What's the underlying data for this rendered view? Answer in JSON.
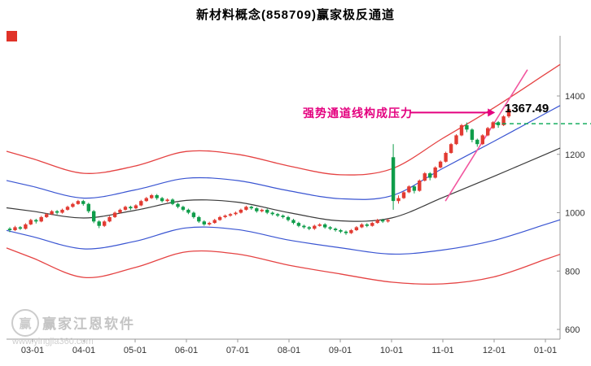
{
  "title": "新材料概念(858709)赢家极反通道",
  "annotation": {
    "text": "强势通道线构成压力",
    "price_label": "1367.49",
    "color": "#e4007f"
  },
  "watermark": {
    "logo_text": "赢",
    "name": "赢家江恩软件",
    "url": "www.yingjia360.com"
  },
  "colors": {
    "up": "#e23b32",
    "down": "#0f9d4a",
    "channel_red": "#e54343",
    "channel_blue": "#3a55d2",
    "channel_black": "#3a3a3a",
    "trend_pink": "#f2569f",
    "dashed_green": "#00a650",
    "axis": "#999999",
    "tick_label": "#333333"
  },
  "chart_data": {
    "type": "candlestick",
    "title": "新材料概念(858709)赢家极反通道",
    "x_ticks": [
      "03-01",
      "04-01",
      "05-01",
      "06-01",
      "07-01",
      "08-01",
      "09-01",
      "10-01",
      "11-01",
      "12-01",
      "01-01"
    ],
    "y_ticks": [
      600,
      800,
      1000,
      1200,
      1400
    ],
    "ylim": [
      560,
      1520
    ],
    "grid": false,
    "legend": "none",
    "candles": [
      [
        945,
        950,
        933,
        940
      ],
      [
        940,
        955,
        937,
        950
      ],
      [
        950,
        954,
        941,
        945
      ],
      [
        945,
        964,
        942,
        960
      ],
      [
        960,
        979,
        957,
        975
      ],
      [
        975,
        979,
        963,
        970
      ],
      [
        970,
        989,
        967,
        985
      ],
      [
        985,
        999,
        982,
        995
      ],
      [
        995,
        1009,
        992,
        1005
      ],
      [
        1005,
        1009,
        994,
        1000
      ],
      [
        1000,
        1014,
        997,
        1010
      ],
      [
        1010,
        1024,
        1007,
        1020
      ],
      [
        1020,
        1034,
        1017,
        1030
      ],
      [
        1030,
        1044,
        1027,
        1040
      ],
      [
        1040,
        1044,
        1024,
        1030
      ],
      [
        1030,
        1034,
        999,
        1005
      ],
      [
        1005,
        1009,
        964,
        970
      ],
      [
        970,
        974,
        947,
        955
      ],
      [
        955,
        974,
        951,
        970
      ],
      [
        970,
        989,
        967,
        985
      ],
      [
        985,
        1004,
        982,
        1000
      ],
      [
        1000,
        1014,
        997,
        1010
      ],
      [
        1010,
        1024,
        1007,
        1020
      ],
      [
        1020,
        1024,
        1009,
        1015
      ],
      [
        1015,
        1029,
        1012,
        1025
      ],
      [
        1025,
        1044,
        1022,
        1040
      ],
      [
        1040,
        1054,
        1037,
        1050
      ],
      [
        1050,
        1064,
        1047,
        1060
      ],
      [
        1060,
        1064,
        1044,
        1050
      ],
      [
        1050,
        1054,
        1035,
        1040
      ],
      [
        1040,
        1049,
        1036,
        1045
      ],
      [
        1045,
        1049,
        1026,
        1030
      ],
      [
        1030,
        1034,
        1015,
        1020
      ],
      [
        1020,
        1024,
        1005,
        1010
      ],
      [
        1010,
        1014,
        995,
        1000
      ],
      [
        1000,
        1004,
        980,
        985
      ],
      [
        985,
        989,
        965,
        970
      ],
      [
        970,
        974,
        955,
        960
      ],
      [
        960,
        969,
        956,
        965
      ],
      [
        965,
        979,
        962,
        975
      ],
      [
        975,
        989,
        972,
        985
      ],
      [
        985,
        994,
        981,
        990
      ],
      [
        990,
        999,
        986,
        995
      ],
      [
        995,
        1004,
        991,
        1000
      ],
      [
        1000,
        1014,
        997,
        1010
      ],
      [
        1010,
        1024,
        1007,
        1020
      ],
      [
        1020,
        1024,
        1010,
        1015
      ],
      [
        1015,
        1019,
        1000,
        1005
      ],
      [
        1005,
        1014,
        1001,
        1010
      ],
      [
        1010,
        1014,
        995,
        1000
      ],
      [
        1000,
        1004,
        990,
        995
      ],
      [
        995,
        999,
        985,
        990
      ],
      [
        990,
        994,
        980,
        985
      ],
      [
        985,
        989,
        970,
        975
      ],
      [
        975,
        979,
        960,
        965
      ],
      [
        965,
        969,
        950,
        955
      ],
      [
        955,
        959,
        945,
        950
      ],
      [
        950,
        954,
        940,
        945
      ],
      [
        945,
        959,
        941,
        955
      ],
      [
        955,
        964,
        952,
        960
      ],
      [
        960,
        964,
        945,
        950
      ],
      [
        950,
        954,
        940,
        945
      ],
      [
        945,
        949,
        935,
        940
      ],
      [
        940,
        944,
        930,
        935
      ],
      [
        935,
        939,
        924,
        930
      ],
      [
        930,
        944,
        927,
        940
      ],
      [
        940,
        954,
        937,
        950
      ],
      [
        950,
        964,
        947,
        960
      ],
      [
        960,
        964,
        950,
        955
      ],
      [
        955,
        969,
        952,
        965
      ],
      [
        965,
        979,
        962,
        975
      ],
      [
        975,
        979,
        965,
        970
      ],
      [
        970,
        979,
        966,
        975
      ],
      [
        1190,
        1235,
        1010,
        1040
      ],
      [
        1040,
        1059,
        1031,
        1050
      ],
      [
        1050,
        1074,
        1047,
        1070
      ],
      [
        1070,
        1094,
        1067,
        1090
      ],
      [
        1090,
        1094,
        1066,
        1075
      ],
      [
        1075,
        1114,
        1072,
        1110
      ],
      [
        1110,
        1139,
        1107,
        1135
      ],
      [
        1135,
        1139,
        1111,
        1120
      ],
      [
        1120,
        1159,
        1117,
        1155
      ],
      [
        1155,
        1179,
        1152,
        1175
      ],
      [
        1175,
        1209,
        1172,
        1205
      ],
      [
        1205,
        1239,
        1202,
        1235
      ],
      [
        1235,
        1269,
        1232,
        1265
      ],
      [
        1265,
        1304,
        1262,
        1300
      ],
      [
        1300,
        1309,
        1276,
        1285
      ],
      [
        1285,
        1289,
        1241,
        1250
      ],
      [
        1250,
        1254,
        1226,
        1235
      ],
      [
        1235,
        1269,
        1232,
        1265
      ],
      [
        1265,
        1294,
        1262,
        1290
      ],
      [
        1290,
        1314,
        1287,
        1310
      ],
      [
        1310,
        1314,
        1291,
        1300
      ],
      [
        1300,
        1334,
        1297,
        1330
      ],
      [
        1330,
        1367,
        1325,
        1355
      ]
    ],
    "channel_lines": [
      {
        "name": "upper-red-channel-line",
        "color": "#e54343",
        "width": 1.3,
        "values": [
          1185,
          1135,
          1160,
          1210,
          1200,
          1160,
          1130,
          1150,
          1255,
          1360,
          1475
        ]
      },
      {
        "name": "upper-blue-channel-line",
        "color": "#3a55d2",
        "width": 1.2,
        "values": [
          1090,
          1050,
          1078,
          1118,
          1110,
          1075,
          1048,
          1058,
          1152,
          1245,
          1340
        ]
      },
      {
        "name": "middle-black-channel-line",
        "color": "#3a3a3a",
        "width": 1.2,
        "values": [
          1005,
          982,
          1008,
          1042,
          1036,
          1000,
          972,
          982,
          1052,
          1125,
          1200
        ]
      },
      {
        "name": "lower-blue-channel-line",
        "color": "#3a55d2",
        "width": 1.2,
        "values": [
          918,
          876,
          902,
          948,
          942,
          906,
          880,
          858,
          872,
          905,
          960
        ]
      },
      {
        "name": "lower-red-channel-line",
        "color": "#e54343",
        "width": 1.3,
        "values": [
          845,
          778,
          812,
          866,
          858,
          820,
          790,
          762,
          756,
          780,
          840
        ]
      }
    ],
    "trend_line": {
      "name": "strong-channel-trend-line",
      "color": "#f2569f",
      "from_month": 8.05,
      "from_price": 1040,
      "to_month": 9.65,
      "to_price": 1490
    },
    "pressure_arrow": {
      "level_y_price": 1343,
      "from_month": 7.35,
      "to_month": 9.02
    },
    "level_line": {
      "price": 1305,
      "style": "dashed",
      "color": "#00a650"
    },
    "pressure_value": 1367.49
  }
}
